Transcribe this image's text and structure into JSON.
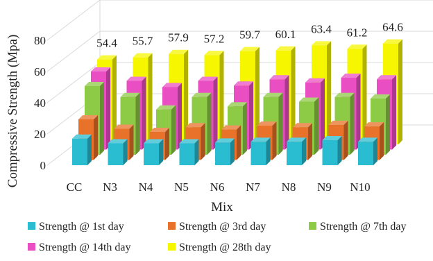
{
  "chart_data": {
    "type": "bar",
    "subtype": "3d-clustered-depth",
    "title": "",
    "xlabel": "Mix",
    "ylabel": "Compressive Strength (Mpa)",
    "ylim": [
      0,
      80
    ],
    "yticks": [
      0,
      20,
      40,
      60,
      80
    ],
    "grid": true,
    "legend_position": "bottom",
    "categories": [
      "CC",
      "N3",
      "N4",
      "N5",
      "N6",
      "N7",
      "N8",
      "N9",
      "N10"
    ],
    "series": [
      {
        "name": "Strength @ 1st day",
        "color": "#2ABCD0",
        "values": [
          17,
          14,
          14,
          14,
          14.5,
          15,
          15,
          16,
          15
        ]
      },
      {
        "name": "Strength @ 3rd day",
        "color": "#E8722A",
        "values": [
          26,
          20,
          18,
          21,
          19.5,
          22,
          21,
          22.5,
          21.5
        ]
      },
      {
        "name": "Strength @ 7th day",
        "color": "#8DCA45",
        "values": [
          44,
          37,
          29,
          37,
          31,
          37,
          34,
          37,
          36
        ]
      },
      {
        "name": "Strength @ 14th day",
        "color": "#E94FC3",
        "values": [
          50,
          44,
          40,
          44,
          41,
          45,
          43,
          46,
          45
        ]
      },
      {
        "name": "Strength @ 28th day",
        "color": "#F6F600",
        "values": [
          54.4,
          55.7,
          57.9,
          57.2,
          59.7,
          60.1,
          63.4,
          61.2,
          64.6
        ]
      }
    ],
    "data_labels": {
      "series": "Strength @ 28th day",
      "labels": [
        "54.4",
        "55.7",
        "57.9",
        "57.2",
        "59.7",
        "60.1",
        "63.4",
        "61.2",
        "64.6"
      ]
    }
  }
}
